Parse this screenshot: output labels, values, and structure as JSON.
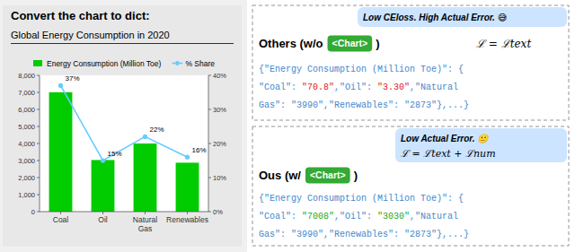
{
  "chart_data": {
    "type": "bar",
    "title": "Convert the chart to dict:",
    "subtitle": "Global Energy Consumption in 2020",
    "categories": [
      "Coal",
      "Oil",
      "Natural\nGas",
      "Renewables"
    ],
    "series": [
      {
        "name": "Energy Consumption (Million Toe)",
        "type": "bar",
        "color": "#00cc00",
        "values": [
          7008,
          3030,
          4000,
          2873
        ]
      },
      {
        "name": "% Share",
        "type": "line",
        "color": "#66ccff",
        "marker": "circle",
        "axis": "y2",
        "values": [
          37,
          15,
          22,
          16
        ],
        "data_labels": true,
        "value_labels": [
          "37%",
          "15%",
          "22%",
          "16%"
        ]
      }
    ],
    "ylim": [
      0,
      8000
    ],
    "yticks": [
      0,
      {
        "value": 1000,
        "label": "1,000"
      },
      {
        "value": 2000,
        "label": "2,000"
      },
      {
        "value": 3000,
        "label": "3,000"
      },
      {
        "value": 4000,
        "label": "4,000"
      },
      {
        "value": 5000,
        "label": "5,000"
      },
      {
        "value": 6000,
        "label": "6,000"
      },
      {
        "value": 7000,
        "label": "7,000"
      },
      {
        "value": 8000,
        "label": "8,000"
      }
    ],
    "y2lim": [
      0,
      40
    ],
    "y2ticks": [
      {
        "value": 0,
        "label": "0%"
      },
      {
        "value": 10,
        "label": "10%"
      },
      {
        "value": 20,
        "label": "20%"
      },
      {
        "value": 30,
        "label": "30%"
      },
      {
        "value": 40,
        "label": "40%"
      }
    ],
    "grid": false,
    "legend": "top",
    "annotations": [
      {
        "text": "Low CEloss. High Actual Error. 😅"
      },
      {
        "text": "Others (w/o"
      },
      {
        "text": "<Chart>"
      },
      {
        "text": ")"
      },
      {
        "text": "ℒ = ℒtext"
      },
      {
        "text": "{\"Energy Consumption (Million Toe)\": {",
        "color": "#4488cc"
      },
      {
        "text": "\"Coal\": ",
        "color": "#4488cc"
      },
      {
        "text": "\"70.8\"",
        "color": "#dd2222"
      },
      {
        "text": ",\"Oil\": ",
        "color": "#4488cc"
      },
      {
        "text": "\"3.30\"",
        "color": "#dd2222"
      },
      {
        "text": ",\"Natural",
        "color": "#4488cc"
      },
      {
        "text": "Gas\": \"3990\",\"Renewables\": \"2873\"},...}",
        "color": "#4488cc"
      },
      {
        "text": "Low Actual Error. 🙂"
      },
      {
        "text": "ℒ = ℒtext + ℒnum"
      },
      {
        "text": "Ous (w/"
      },
      {
        "text": "<Chart>"
      },
      {
        "text": ")"
      },
      {
        "text": "{\"Energy Consumption (Million Toe)\": {",
        "color": "#4488cc"
      },
      {
        "text": "\"Coal\": ",
        "color": "#4488cc"
      },
      {
        "text": "\"7008\"",
        "color": "#22aa22"
      },
      {
        "text": ",\"Oil\": ",
        "color": "#4488cc"
      },
      {
        "text": "\"3030\"",
        "color": "#22aa22"
      },
      {
        "text": ",\"Natural",
        "color": "#4488cc"
      },
      {
        "text": "Gas\": \"3990\",\"Renewables\": \"2873\"},...}",
        "color": "#4488cc"
      }
    ]
  }
}
